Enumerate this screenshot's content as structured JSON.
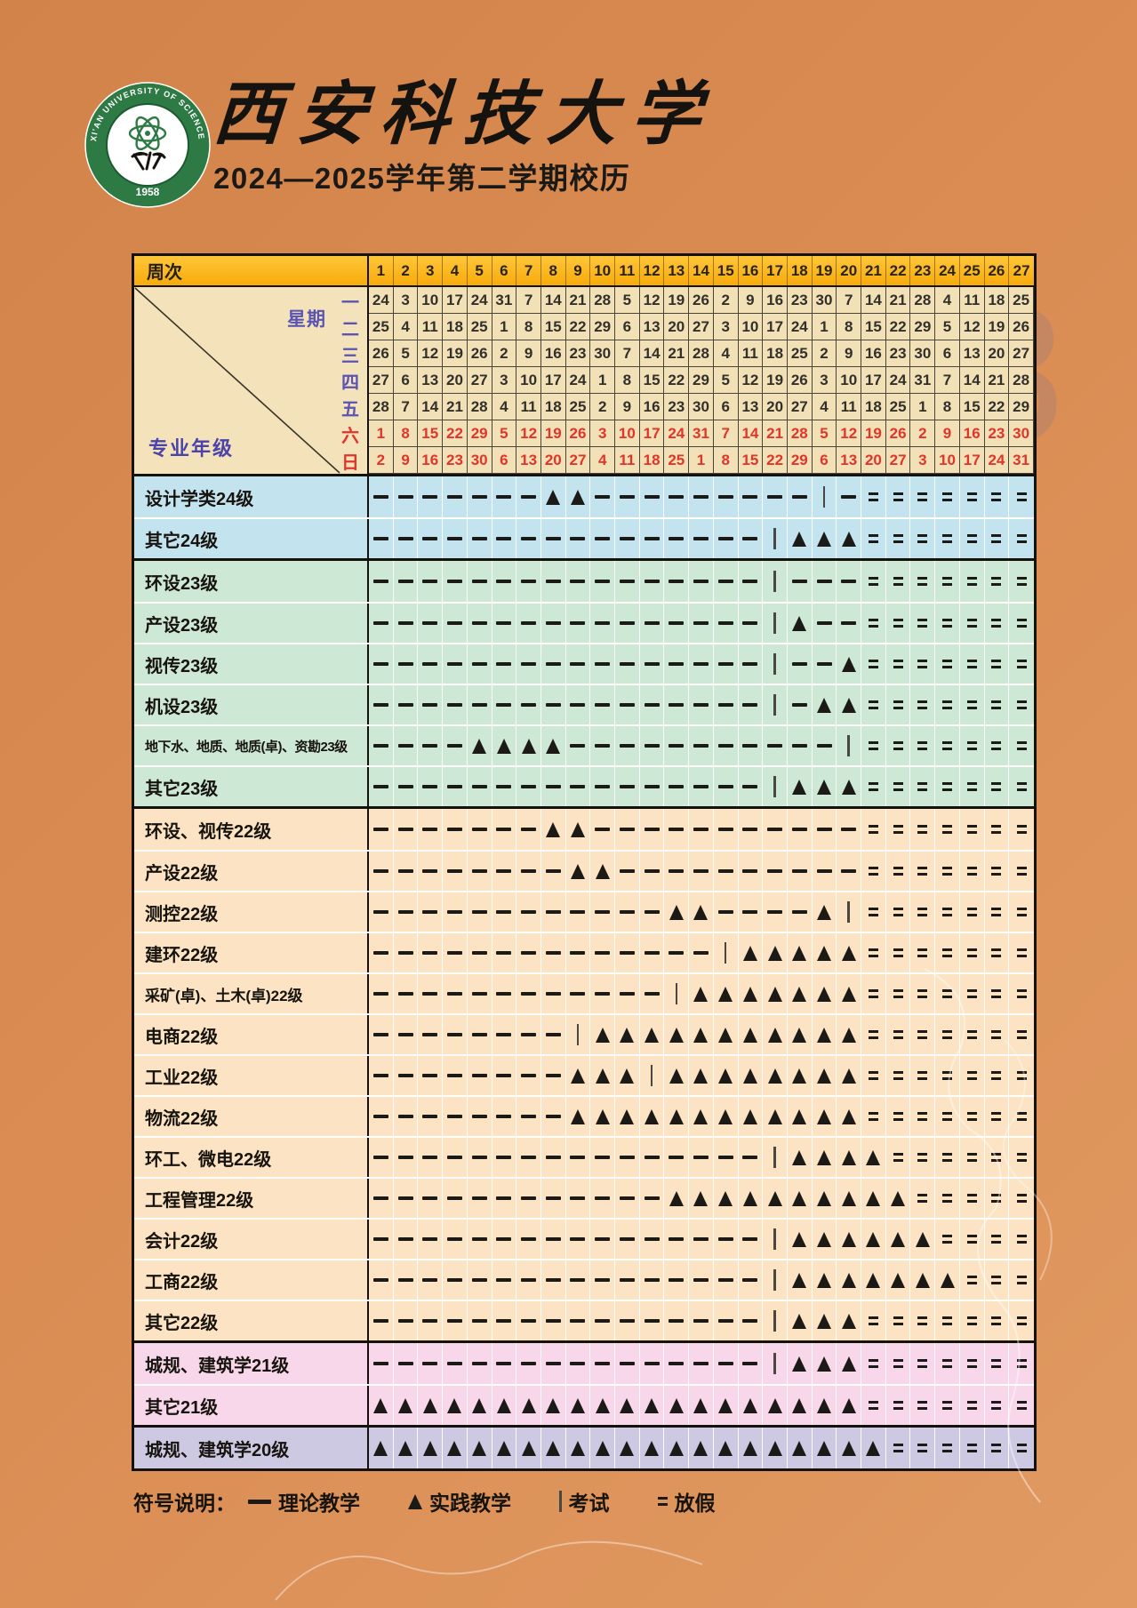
{
  "page": {
    "title": "西安科技大学",
    "subtitle": "2024—2025学年第二学期校历",
    "logo": {
      "ring_text": "XI'AN UNIVERSITY OF SCIENCE & TECHNOLOGY",
      "year": "1958"
    }
  },
  "table": {
    "header": {
      "week_label": "周次",
      "weeks": [
        1,
        2,
        3,
        4,
        5,
        6,
        7,
        8,
        9,
        10,
        11,
        12,
        13,
        14,
        15,
        16,
        17,
        18,
        19,
        20,
        21,
        22,
        23,
        24,
        25,
        26,
        27
      ]
    },
    "corner": {
      "week_axis": "星期",
      "class_axis": "专业年级"
    },
    "weekday_rows": [
      {
        "day": "一",
        "weekend": false,
        "dates": [
          24,
          3,
          10,
          17,
          24,
          31,
          7,
          14,
          21,
          28,
          5,
          12,
          19,
          26,
          2,
          9,
          16,
          23,
          30,
          7,
          14,
          21,
          28,
          4,
          11,
          18,
          25
        ]
      },
      {
        "day": "二",
        "weekend": false,
        "dates": [
          25,
          4,
          11,
          18,
          25,
          1,
          8,
          15,
          22,
          29,
          6,
          13,
          20,
          27,
          3,
          10,
          17,
          24,
          1,
          8,
          15,
          22,
          29,
          5,
          12,
          19,
          26
        ]
      },
      {
        "day": "三",
        "weekend": false,
        "dates": [
          26,
          5,
          12,
          19,
          26,
          2,
          9,
          16,
          23,
          30,
          7,
          14,
          21,
          28,
          4,
          11,
          18,
          25,
          2,
          9,
          16,
          23,
          30,
          6,
          13,
          20,
          27
        ]
      },
      {
        "day": "四",
        "weekend": false,
        "dates": [
          27,
          6,
          13,
          20,
          27,
          3,
          10,
          17,
          24,
          1,
          8,
          15,
          22,
          29,
          5,
          12,
          19,
          26,
          3,
          10,
          17,
          24,
          31,
          7,
          14,
          21,
          28
        ]
      },
      {
        "day": "五",
        "weekend": false,
        "dates": [
          28,
          7,
          14,
          21,
          28,
          4,
          11,
          18,
          25,
          2,
          9,
          16,
          23,
          30,
          6,
          13,
          20,
          27,
          4,
          11,
          18,
          25,
          1,
          8,
          15,
          22,
          29
        ]
      },
      {
        "day": "六",
        "weekend": true,
        "dates": [
          1,
          8,
          15,
          22,
          29,
          5,
          12,
          19,
          26,
          3,
          10,
          17,
          24,
          31,
          7,
          14,
          21,
          28,
          5,
          12,
          19,
          26,
          2,
          9,
          16,
          23,
          30
        ]
      },
      {
        "day": "日",
        "weekend": true,
        "dates": [
          2,
          9,
          16,
          23,
          30,
          6,
          13,
          20,
          27,
          4,
          11,
          18,
          25,
          1,
          8,
          15,
          22,
          29,
          6,
          13,
          20,
          27,
          3,
          10,
          17,
          24,
          31
        ]
      }
    ],
    "symbol_key": {
      "-": "theory",
      "t": "practice",
      "p": "exam",
      "e": "holiday"
    },
    "program_rows": [
      {
        "label": "设计学类24级",
        "block": "blue",
        "symbols": "-------tt---------p-eeeeeee"
      },
      {
        "label": "其它24级",
        "block": "blue",
        "symbols": "----------------pttteeeeeee"
      },
      {
        "label": "环设23级",
        "block": "green",
        "symbols": "----------------p---eeeeeee"
      },
      {
        "label": "产设23级",
        "block": "green",
        "symbols": "----------------pt--eeeeeee"
      },
      {
        "label": "视传23级",
        "block": "green",
        "symbols": "----------------p--teeeeeee"
      },
      {
        "label": "机设23级",
        "block": "green",
        "symbols": "----------------p-tteeeeeee"
      },
      {
        "label": "地下水、地质、地质(卓)、资勘23级",
        "block": "green",
        "symbols": "----tttt-----------peeeeeee"
      },
      {
        "label": "其它23级",
        "block": "green",
        "symbols": "----------------pttteeeeeee"
      },
      {
        "label": "环设、视传22级",
        "block": "peach",
        "symbols": "-------tt-----------eeeeeee"
      },
      {
        "label": "产设22级",
        "block": "peach",
        "symbols": "--------tt----------eeeeeee"
      },
      {
        "label": "测控22级",
        "block": "peach",
        "symbols": "------------tt----tpeeeeeee"
      },
      {
        "label": "建环22级",
        "block": "peach",
        "symbols": "--------------pttttteeeeeee"
      },
      {
        "label": "采矿(卓)、土木(卓)22级",
        "block": "peach",
        "symbols": "------------pttttttteeeeeee"
      },
      {
        "label": "电商22级",
        "block": "peach",
        "symbols": "--------pttttttttttteeeeeee"
      },
      {
        "label": "工业22级",
        "block": "peach",
        "symbols": "--------tttptttttttteeeeeee"
      },
      {
        "label": "物流22级",
        "block": "peach",
        "symbols": "--------tttttttttttteeeeeee"
      },
      {
        "label": "环工、微电22级",
        "block": "peach",
        "symbols": "----------------ptttteeeeee"
      },
      {
        "label": "工程管理22级",
        "block": "peach",
        "symbols": "------------tttttttttteeeee"
      },
      {
        "label": "会计22级",
        "block": "peach",
        "symbols": "----------------ptttttteeee"
      },
      {
        "label": "工商22级",
        "block": "peach",
        "symbols": "----------------pttttttteee"
      },
      {
        "label": "其它22级",
        "block": "peach",
        "symbols": "----------------pttteeeeeee"
      },
      {
        "label": "城规、建筑学21级",
        "block": "pink",
        "symbols": "----------------pttteeeeeee"
      },
      {
        "label": "其它21级",
        "block": "pink",
        "symbols": "tttttttttttttttttttteeeeeee"
      },
      {
        "label": "城规、建筑学20级",
        "block": "purple",
        "symbols": "ttttttttttttttttttttteeeeee"
      }
    ]
  },
  "legend": {
    "prefix": "符号说明：",
    "items": [
      {
        "glyph": "dash",
        "label": "理论教学"
      },
      {
        "glyph": "triangle",
        "label": "实践教学"
      },
      {
        "glyph": "pipe",
        "label": "考试"
      },
      {
        "glyph": "equals",
        "label": "放假"
      }
    ]
  },
  "decor": {
    "watermark_digits": [
      "3",
      "4",
      "5",
      "6",
      "7",
      "8"
    ]
  },
  "colors": {
    "background": "#d98c52",
    "header_yellow": "#fbb112",
    "date_cream": "#f2e0b6",
    "weekend_red": "#e0352b",
    "weekday_blue": "#5a54b2",
    "block_blue": "#c3e3ef",
    "block_green": "#cde8d5",
    "block_peach": "#fbe3c3",
    "block_pink": "#f7d7e9",
    "block_purple": "#cdc9e3",
    "logo_green": "#2e7a45",
    "symbol_black": "#1c1a17"
  }
}
